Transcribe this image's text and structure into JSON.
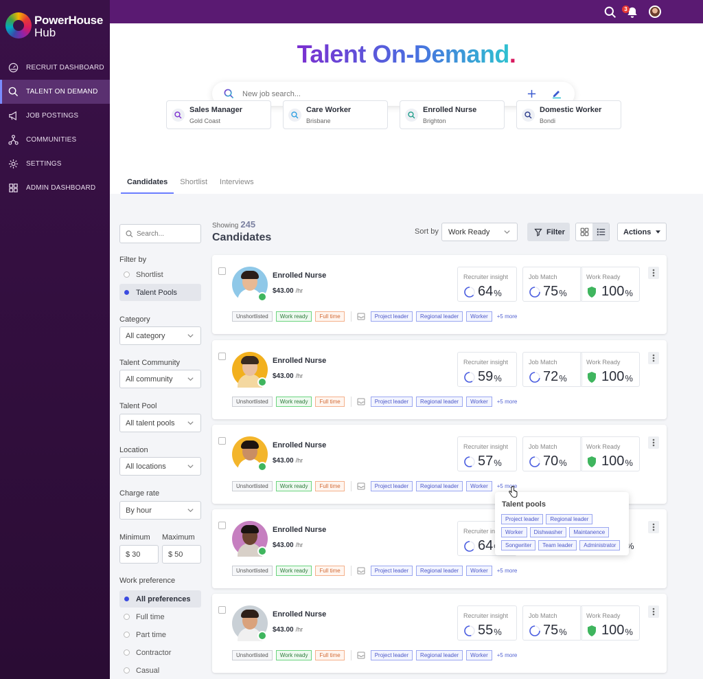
{
  "brand": {
    "line1": "PowerHouse",
    "line2": "Hub"
  },
  "nav": [
    {
      "label": "RECRUIT DASHBOARD",
      "icon": "dashboard-gauge-icon"
    },
    {
      "label": "TALENT ON DEMAND",
      "icon": "search-icon",
      "active": true
    },
    {
      "label": "JOB POSTINGS",
      "icon": "megaphone-icon"
    },
    {
      "label": "COMMUNITIES",
      "icon": "network-icon"
    },
    {
      "label": "SETTINGS",
      "icon": "gear-icon"
    },
    {
      "label": "ADMIN DASHBOARD",
      "icon": "grid-icon"
    }
  ],
  "topbar": {
    "notification_count": "3"
  },
  "hero": {
    "title_main": "Talent On-Demand",
    "title_dot": "."
  },
  "search": {
    "placeholder": "New job search..."
  },
  "quick_searches": [
    {
      "title": "Sales Manager",
      "location": "Gold Coast"
    },
    {
      "title": "Care Worker",
      "location": "Brisbane"
    },
    {
      "title": "Enrolled Nurse",
      "location": "Brighton"
    },
    {
      "title": "Domestic Worker",
      "location": "Bondi"
    }
  ],
  "tabs": [
    "Candidates",
    "Shortlist",
    "Interviews"
  ],
  "filters": {
    "search_placeholder": "Search...",
    "filter_by_label": "Filter by",
    "filter_by_options": [
      "Shortlist",
      "Talent Pools"
    ],
    "category_label": "Category",
    "category_value": "All category",
    "community_label": "Talent Community",
    "community_value": "All community",
    "pool_label": "Talent Pool",
    "pool_value": "All talent pools",
    "location_label": "Location",
    "location_value": "All locations",
    "charge_label": "Charge rate",
    "charge_value": "By hour",
    "min_label": "Minimum",
    "max_label": "Maximum",
    "min_value": "$ 30",
    "max_value": "$ 50",
    "work_pref_label": "Work preference",
    "work_pref_options": [
      "All preferences",
      "Full time",
      "Part time",
      "Contractor",
      "Casual"
    ]
  },
  "list": {
    "showing_label": "Showing",
    "count": "245",
    "title": "Candidates",
    "sort_label": "Sort by",
    "sort_value": "Work Ready",
    "filter_label": "Filter",
    "actions_label": "Actions"
  },
  "metric_labels": {
    "insight": "Recruiter insight",
    "match": "Job Match",
    "ready": "Work Ready"
  },
  "candidates": [
    {
      "name": "Enrolled Nurse",
      "rate": "$43.00",
      "unit": "/hr",
      "insight": "64",
      "match": "75",
      "ready": "100",
      "skin": "#e7b994",
      "hair": "#2a1d18",
      "bg": "#8fc8e8",
      "shirt": "#ffffff"
    },
    {
      "name": "Enrolled Nurse",
      "rate": "$43.00",
      "unit": "/hr",
      "insight": "59",
      "match": "72",
      "ready": "100",
      "skin": "#e9bfa0",
      "hair": "#3a2a20",
      "bg": "#f2b01e",
      "shirt": "#f4d8a0"
    },
    {
      "name": "Enrolled Nurse",
      "rate": "$43.00",
      "unit": "/hr",
      "insight": "57",
      "match": "70",
      "ready": "100",
      "skin": "#c98e64",
      "hair": "#1d1410",
      "bg": "#f3b52b",
      "shirt": "#ffffff"
    },
    {
      "name": "Enrolled Nurse",
      "rate": "$43.00",
      "unit": "/hr",
      "insight": "64",
      "match": "",
      "ready": "",
      "skin": "#6a4330",
      "hair": "#1a1210",
      "bg": "#c67fc0",
      "shirt": "#d8d0c8"
    },
    {
      "name": "Enrolled Nurse",
      "rate": "$43.00",
      "unit": "/hr",
      "insight": "55",
      "match": "75",
      "ready": "100",
      "skin": "#d9a27c",
      "hair": "#2d1f18",
      "bg": "#c9d0d6",
      "shirt": "#f0f0f0"
    }
  ],
  "tags": {
    "status": "Unshortlisted",
    "ready": "Work ready",
    "type": "Full time",
    "pools": [
      "Project leader",
      "Regional leader",
      "Worker"
    ],
    "more": "+5 more"
  },
  "popover": {
    "title": "Talent pools",
    "row1": [
      "Project leader",
      "Regional leader"
    ],
    "row2": [
      "Worker",
      "Dishwasher",
      "Maintanence"
    ],
    "row3": [
      "Songwriter",
      "Team leader",
      "Administrator"
    ]
  },
  "occluded_ready_suffix": "%"
}
